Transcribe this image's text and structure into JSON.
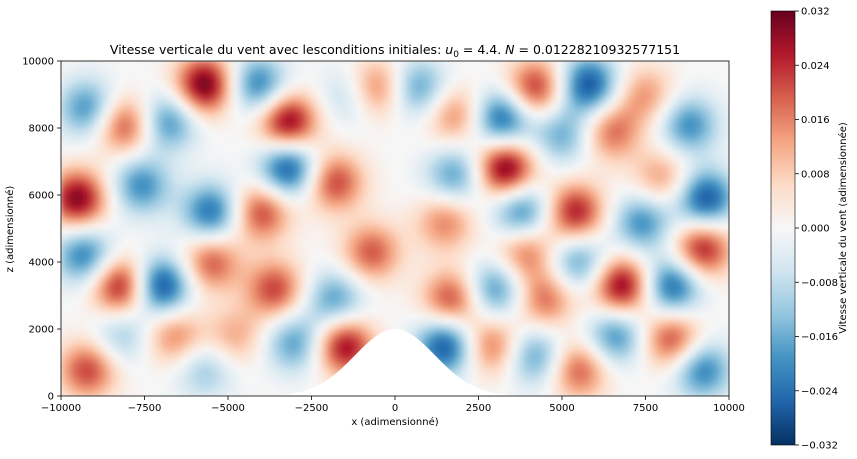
{
  "chart_data": {
    "type": "heatmap",
    "title": "Vitesse verticale du vent avec lesconditions initiales: ",
    "title_math": {
      "u0_symbol": "u",
      "u0_subscript": "0",
      "u0_equals": " =  4.4. ",
      "N_symbol": "N",
      "N_equals": " = 0.01228210932577151"
    },
    "xlabel": "x (adimensionné)",
    "ylabel": "z (adimensionné)",
    "xlim": [
      -10000,
      10000
    ],
    "ylim": [
      0,
      10000
    ],
    "xticks": [
      "−10000",
      "−7500",
      "−5000",
      "−2500",
      "0",
      "2500",
      "5000",
      "7500",
      "10000"
    ],
    "yticks": [
      "0",
      "2000",
      "4000",
      "6000",
      "8000",
      "10000"
    ],
    "colorbar": {
      "label": "Vitesse verticale du vent (adimensionnée)",
      "range": [
        -0.032,
        0.032
      ],
      "ticks": [
        "−0.032",
        "−0.024",
        "−0.016",
        "−0.008",
        "0.000",
        "0.008",
        "0.016",
        "0.024",
        "0.032"
      ],
      "colormap": "RdBu_r",
      "colors_low_to_high": [
        "#053061",
        "#2166ac",
        "#4393c3",
        "#92c5de",
        "#d1e5f0",
        "#f7f7f7",
        "#fddbc7",
        "#f4a582",
        "#d6604d",
        "#b2182b",
        "#67001f"
      ]
    },
    "terrain": {
      "type": "gaussian hill",
      "peak_x": 0,
      "peak_z": 2000,
      "half_width": 1200
    },
    "extrema": [
      {
        "x": -9200,
        "z": 800,
        "w": 0.022
      },
      {
        "x": -8200,
        "z": 1800,
        "w": -0.012
      },
      {
        "x": -6600,
        "z": 1800,
        "w": 0.016
      },
      {
        "x": -5700,
        "z": 800,
        "w": -0.012
      },
      {
        "x": -4800,
        "z": 1800,
        "w": 0.012
      },
      {
        "x": -3000,
        "z": 1600,
        "w": -0.018
      },
      {
        "x": -1500,
        "z": 1500,
        "w": 0.028
      },
      {
        "x": -9300,
        "z": 4200,
        "w": -0.022
      },
      {
        "x": -8200,
        "z": 3300,
        "w": 0.028
      },
      {
        "x": -7000,
        "z": 3300,
        "w": -0.03
      },
      {
        "x": -5500,
        "z": 4000,
        "w": 0.02
      },
      {
        "x": -3600,
        "z": 3200,
        "w": 0.022
      },
      {
        "x": -1800,
        "z": 2900,
        "w": -0.018
      },
      {
        "x": -700,
        "z": 4300,
        "w": 0.02
      },
      {
        "x": -9500,
        "z": 5900,
        "w": 0.03
      },
      {
        "x": -7600,
        "z": 6300,
        "w": -0.02
      },
      {
        "x": -5500,
        "z": 5500,
        "w": -0.024
      },
      {
        "x": -4000,
        "z": 5500,
        "w": 0.022
      },
      {
        "x": -1800,
        "z": 6400,
        "w": 0.022
      },
      {
        "x": -3200,
        "z": 6800,
        "w": -0.028
      },
      {
        "x": -9200,
        "z": 8600,
        "w": -0.02
      },
      {
        "x": -8100,
        "z": 8100,
        "w": 0.022
      },
      {
        "x": -6800,
        "z": 8200,
        "w": -0.02
      },
      {
        "x": -5700,
        "z": 9300,
        "w": 0.032
      },
      {
        "x": -4100,
        "z": 9300,
        "w": -0.022
      },
      {
        "x": -3200,
        "z": 8200,
        "w": 0.03
      },
      {
        "x": -1300,
        "z": 9000,
        "w": -0.012
      },
      {
        "x": -600,
        "z": 9200,
        "w": 0.02
      },
      {
        "x": 700,
        "z": 9200,
        "w": -0.018
      },
      {
        "x": 1500,
        "z": 1500,
        "w": -0.028
      },
      {
        "x": 2900,
        "z": 1500,
        "w": 0.018
      },
      {
        "x": 4200,
        "z": 1200,
        "w": -0.018
      },
      {
        "x": 5500,
        "z": 800,
        "w": 0.02
      },
      {
        "x": 6600,
        "z": 1800,
        "w": -0.02
      },
      {
        "x": 8300,
        "z": 1700,
        "w": 0.022
      },
      {
        "x": 9200,
        "z": 800,
        "w": -0.022
      },
      {
        "x": 1700,
        "z": 2900,
        "w": 0.022
      },
      {
        "x": 3000,
        "z": 3200,
        "w": -0.02
      },
      {
        "x": 4500,
        "z": 2900,
        "w": 0.018
      },
      {
        "x": 5500,
        "z": 4000,
        "w": -0.018
      },
      {
        "x": 6800,
        "z": 3300,
        "w": 0.03
      },
      {
        "x": 8300,
        "z": 3300,
        "w": -0.026
      },
      {
        "x": 9200,
        "z": 4400,
        "w": 0.026
      },
      {
        "x": 1500,
        "z": 5200,
        "w": 0.016
      },
      {
        "x": 3900,
        "z": 4300,
        "w": 0.018
      },
      {
        "x": 1800,
        "z": 6600,
        "w": -0.018
      },
      {
        "x": 3300,
        "z": 6800,
        "w": 0.032
      },
      {
        "x": 3800,
        "z": 5500,
        "w": -0.022
      },
      {
        "x": 5400,
        "z": 5500,
        "w": 0.026
      },
      {
        "x": 7400,
        "z": 5200,
        "w": -0.02
      },
      {
        "x": 9300,
        "z": 5900,
        "w": -0.028
      },
      {
        "x": 8000,
        "z": 6500,
        "w": 0.014
      },
      {
        "x": 3200,
        "z": 8300,
        "w": -0.026
      },
      {
        "x": 1800,
        "z": 8400,
        "w": 0.016
      },
      {
        "x": 4200,
        "z": 9200,
        "w": 0.024
      },
      {
        "x": 5800,
        "z": 9300,
        "w": -0.028
      },
      {
        "x": 6500,
        "z": 7900,
        "w": 0.018
      },
      {
        "x": 7500,
        "z": 9000,
        "w": 0.014
      },
      {
        "x": 8800,
        "z": 8100,
        "w": -0.02
      },
      {
        "x": 5000,
        "z": 7800,
        "w": -0.016
      }
    ]
  }
}
